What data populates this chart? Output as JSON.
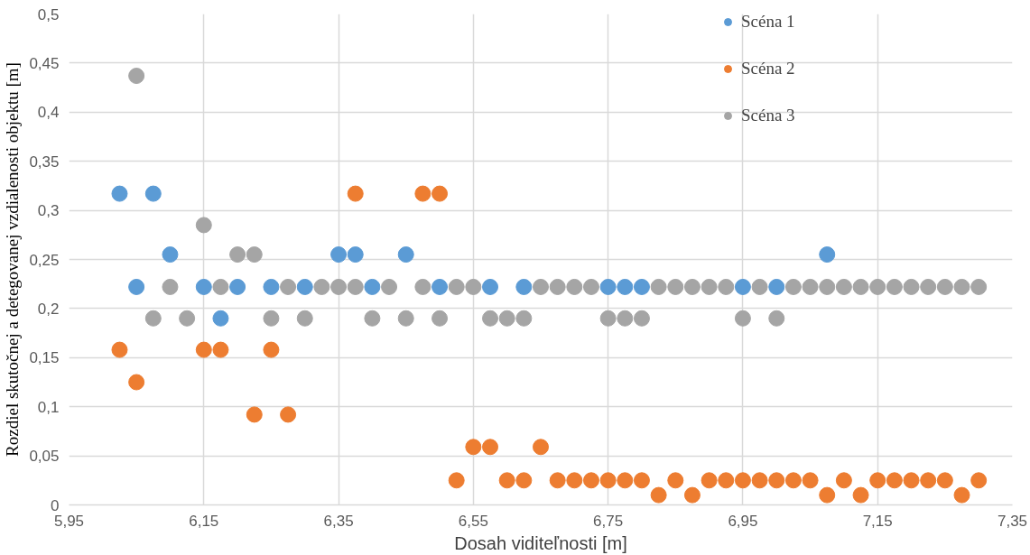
{
  "chart_data": {
    "type": "scatter",
    "xlabel": "Dosah viditeľnosti [m]",
    "ylabel": "Rozdiel skutočnej a detegovanej vzdialenosti objektu [m]",
    "xlim": [
      5.95,
      7.35
    ],
    "xticks": [
      {
        "value": 5.95,
        "label": "5,95"
      },
      {
        "value": 6.15,
        "label": "6,15"
      },
      {
        "value": 6.35,
        "label": "6,35"
      },
      {
        "value": 6.55,
        "label": "6,55"
      },
      {
        "value": 6.75,
        "label": "6,75"
      },
      {
        "value": 6.95,
        "label": "6,95"
      },
      {
        "value": 7.15,
        "label": "7,15"
      },
      {
        "value": 7.35,
        "label": "7,35"
      }
    ],
    "ylim": [
      0,
      0.5
    ],
    "yticks": [
      0,
      {
        "value": 0.05,
        "label": "0,05"
      },
      {
        "value": 0.1,
        "label": "0,1"
      },
      {
        "value": 0.15,
        "label": "0,15"
      },
      {
        "value": 0.2,
        "label": "0,2"
      },
      {
        "value": 0.25,
        "label": "0,25"
      },
      {
        "value": 0.3,
        "label": "0,3"
      },
      {
        "value": 0.35,
        "label": "0,35"
      },
      {
        "value": 0.4,
        "label": "0,4"
      },
      {
        "value": 0.45,
        "label": "0,45"
      },
      {
        "value": 0.5,
        "label": "0,5"
      }
    ],
    "grid": true,
    "legend": "top right",
    "marker": "circle",
    "series": [
      {
        "name": "Scéna 1",
        "color": "#5b9bd5",
        "x": [
          6.025,
          6.05,
          6.075,
          6.1,
          6.15,
          6.175,
          6.2,
          6.25,
          6.3,
          6.35,
          6.375,
          6.4,
          6.45,
          6.5,
          6.575,
          6.625,
          6.75,
          6.775,
          6.8,
          6.95,
          7.0,
          7.075
        ],
        "values": [
          0.317,
          0.222,
          0.317,
          0.255,
          0.222,
          0.19,
          0.222,
          0.222,
          0.222,
          0.255,
          0.255,
          0.222,
          0.255,
          0.222,
          0.222,
          0.222,
          0.222,
          0.222,
          0.222,
          0.222,
          0.222,
          0.255
        ]
      },
      {
        "name": "Scéna 2",
        "color": "#ed7d31",
        "x": [
          6.025,
          6.05,
          6.15,
          6.175,
          6.225,
          6.25,
          6.275,
          6.375,
          6.475,
          6.5,
          6.525,
          6.55,
          6.575,
          6.6,
          6.625,
          6.65,
          6.675,
          6.7,
          6.725,
          6.75,
          6.775,
          6.8,
          6.825,
          6.85,
          6.875,
          6.9,
          6.925,
          6.95,
          6.975,
          7.0,
          7.025,
          7.05,
          7.075,
          7.1,
          7.125,
          7.15,
          7.175,
          7.2,
          7.225,
          7.25,
          7.275,
          7.3
        ],
        "values": [
          0.158,
          0.125,
          0.158,
          0.158,
          0.092,
          0.158,
          0.092,
          0.317,
          0.317,
          0.317,
          0.025,
          0.059,
          0.059,
          0.025,
          0.025,
          0.059,
          0.025,
          0.025,
          0.025,
          0.025,
          0.025,
          0.025,
          0.01,
          0.025,
          0.01,
          0.025,
          0.025,
          0.025,
          0.025,
          0.025,
          0.025,
          0.025,
          0.01,
          0.025,
          0.01,
          0.025,
          0.025,
          0.025,
          0.025,
          0.025,
          0.01,
          0.025
        ]
      },
      {
        "name": "Scéna 3",
        "color": "#a5a5a5",
        "x": [
          6.05,
          6.075,
          6.1,
          6.125,
          6.15,
          6.175,
          6.2,
          6.225,
          6.25,
          6.275,
          6.3,
          6.325,
          6.35,
          6.375,
          6.4,
          6.425,
          6.45,
          6.475,
          6.5,
          6.525,
          6.55,
          6.575,
          6.6,
          6.625,
          6.65,
          6.675,
          6.7,
          6.725,
          6.75,
          6.775,
          6.8,
          6.825,
          6.85,
          6.875,
          6.9,
          6.925,
          6.95,
          6.975,
          7.0,
          7.025,
          7.05,
          7.075,
          7.1,
          7.125,
          7.15,
          7.175,
          7.2,
          7.225,
          7.25,
          7.275,
          7.3
        ],
        "values": [
          0.437,
          0.19,
          0.222,
          0.19,
          0.285,
          0.222,
          0.255,
          0.255,
          0.19,
          0.222,
          0.19,
          0.222,
          0.222,
          0.222,
          0.19,
          0.222,
          0.19,
          0.222,
          0.19,
          0.222,
          0.222,
          0.19,
          0.19,
          0.19,
          0.222,
          0.222,
          0.222,
          0.222,
          0.19,
          0.19,
          0.19,
          0.222,
          0.222,
          0.222,
          0.222,
          0.222,
          0.19,
          0.222,
          0.19,
          0.222,
          0.222,
          0.222,
          0.222,
          0.222,
          0.222,
          0.222,
          0.222,
          0.222,
          0.222,
          0.222,
          0.222
        ]
      }
    ]
  }
}
